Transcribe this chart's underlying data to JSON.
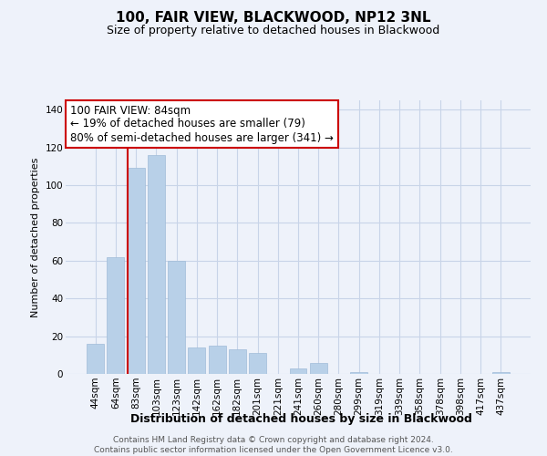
{
  "title": "100, FAIR VIEW, BLACKWOOD, NP12 3NL",
  "subtitle": "Size of property relative to detached houses in Blackwood",
  "xlabel": "Distribution of detached houses by size in Blackwood",
  "ylabel": "Number of detached properties",
  "categories": [
    "44sqm",
    "64sqm",
    "83sqm",
    "103sqm",
    "123sqm",
    "142sqm",
    "162sqm",
    "182sqm",
    "201sqm",
    "221sqm",
    "241sqm",
    "260sqm",
    "280sqm",
    "299sqm",
    "319sqm",
    "339sqm",
    "358sqm",
    "378sqm",
    "398sqm",
    "417sqm",
    "437sqm"
  ],
  "values": [
    16,
    62,
    109,
    116,
    60,
    14,
    15,
    13,
    11,
    0,
    3,
    6,
    0,
    1,
    0,
    0,
    0,
    0,
    0,
    0,
    1
  ],
  "bar_color": "#b8d0e8",
  "bar_edgecolor": "#a0bcd8",
  "marker_line_color": "#cc0000",
  "marker_line_index": 2,
  "ylim": [
    0,
    145
  ],
  "yticks": [
    0,
    20,
    40,
    60,
    80,
    100,
    120,
    140
  ],
  "annotation_line1": "100 FAIR VIEW: 84sqm",
  "annotation_line2": "← 19% of detached houses are smaller (79)",
  "annotation_line3": "80% of semi-detached houses are larger (341) →",
  "annotation_box_edgecolor": "#cc0000",
  "footer_line1": "Contains HM Land Registry data © Crown copyright and database right 2024.",
  "footer_line2": "Contains public sector information licensed under the Open Government Licence v3.0.",
  "background_color": "#eef2fa",
  "grid_color": "#c8d4e8",
  "title_fontsize": 11,
  "subtitle_fontsize": 9,
  "xlabel_fontsize": 9,
  "ylabel_fontsize": 8,
  "tick_fontsize": 7.5,
  "annotation_fontsize": 8.5,
  "footer_fontsize": 6.5
}
